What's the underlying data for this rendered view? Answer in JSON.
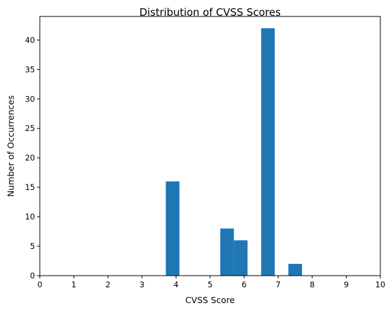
{
  "chart_data": {
    "type": "bar",
    "title": "Distribution of CVSS Scores",
    "xlabel": "CVSS Score",
    "ylabel": "Number of Occurrences",
    "xlim": [
      0,
      10
    ],
    "ylim": [
      0,
      44
    ],
    "xticks": [
      0,
      1,
      2,
      3,
      4,
      5,
      6,
      7,
      8,
      9,
      10
    ],
    "yticks": [
      0,
      5,
      10,
      15,
      20,
      25,
      30,
      35,
      40
    ],
    "bar_color": "#1f77b4",
    "grid": false,
    "bins": [
      {
        "start": 3.7,
        "end": 4.1,
        "count": 16
      },
      {
        "start": 5.3,
        "end": 5.7,
        "count": 8
      },
      {
        "start": 5.7,
        "end": 6.1,
        "count": 6
      },
      {
        "start": 6.5,
        "end": 6.9,
        "count": 42
      },
      {
        "start": 7.3,
        "end": 7.7,
        "count": 2
      }
    ]
  }
}
